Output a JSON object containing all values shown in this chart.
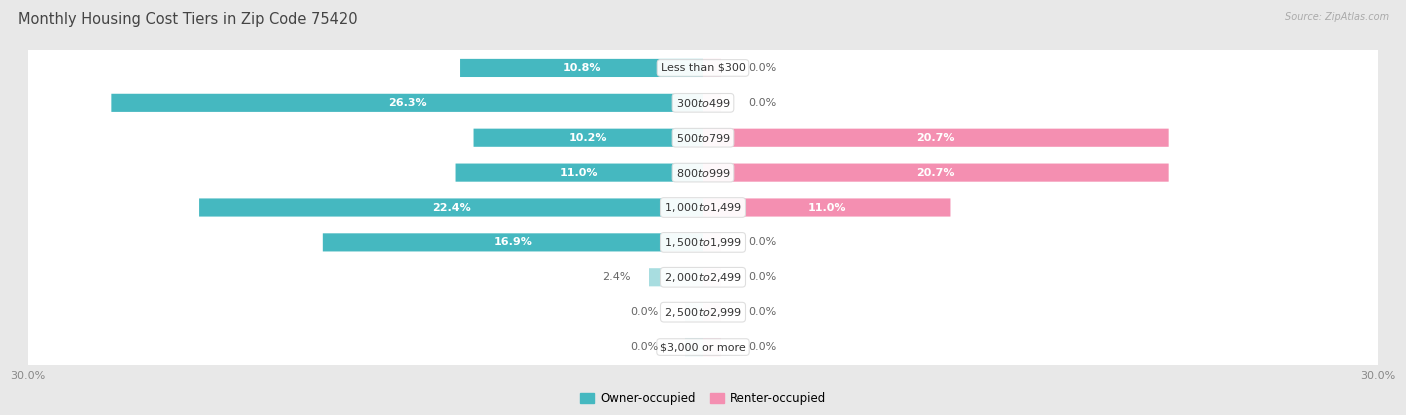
{
  "title": "Monthly Housing Cost Tiers in Zip Code 75420",
  "source": "Source: ZipAtlas.com",
  "categories": [
    "Less than $300",
    "$300 to $499",
    "$500 to $799",
    "$800 to $999",
    "$1,000 to $1,499",
    "$1,500 to $1,999",
    "$2,000 to $2,499",
    "$2,500 to $2,999",
    "$3,000 or more"
  ],
  "owner_values": [
    10.8,
    26.3,
    10.2,
    11.0,
    22.4,
    16.9,
    2.4,
    0.0,
    0.0
  ],
  "renter_values": [
    0.0,
    0.0,
    20.7,
    20.7,
    11.0,
    0.0,
    0.0,
    0.0,
    0.0
  ],
  "owner_color": "#45B8C0",
  "renter_color": "#F48FB1",
  "owner_color_light": "#A8DDE0",
  "renter_color_light": "#F9C4D8",
  "owner_label": "Owner-occupied",
  "renter_label": "Renter-occupied",
  "axis_max": 30.0,
  "bg_color": "#e8e8e8",
  "row_bg": "#ffffff",
  "title_fontsize": 10.5,
  "label_fontsize": 8,
  "category_fontsize": 8,
  "source_fontsize": 7
}
